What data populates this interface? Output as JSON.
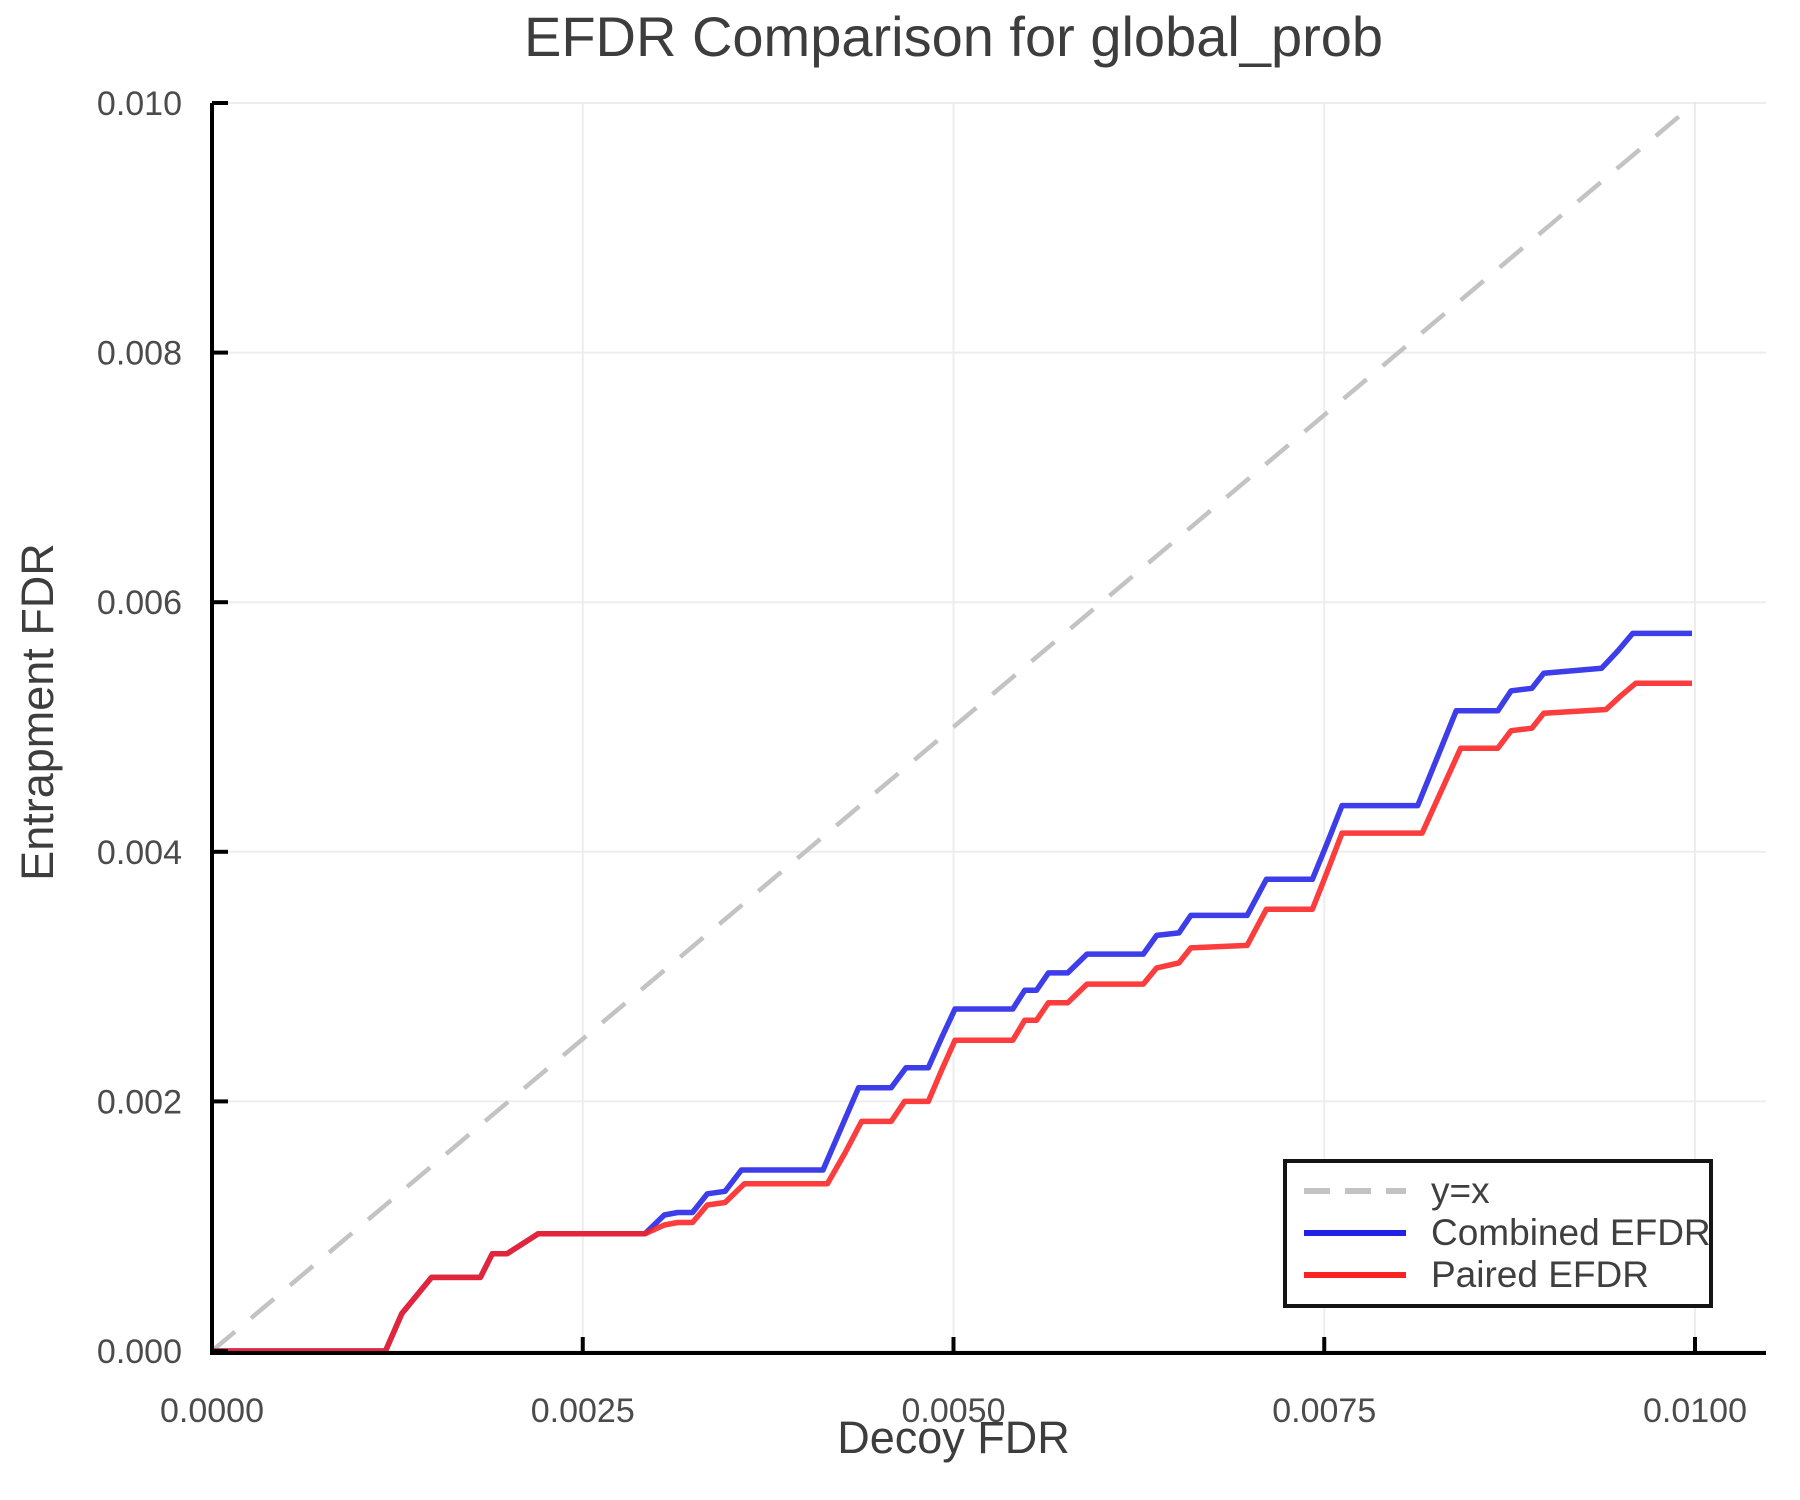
{
  "chart_data": {
    "type": "line",
    "title": "EFDR Comparison for global_prob",
    "xlabel": "Decoy FDR",
    "ylabel": "Entrapment FDR",
    "xlim": [
      0.0,
      0.0105
    ],
    "ylim": [
      0.0,
      0.0101
    ],
    "grid": true,
    "legend_position": "lower right",
    "colors": {
      "grid": "#ededed",
      "spine": "#000000",
      "tick": "#000000",
      "tick_label": "#4b4b4b",
      "title_text": "#3d3d3d",
      "background": "#ffffff"
    },
    "x_ticks": {
      "values": [
        0.0,
        0.0025,
        0.005,
        0.0075,
        0.01
      ],
      "labels": [
        "0.0000",
        "0.0025",
        "0.0050",
        "0.0075",
        "0.0100"
      ]
    },
    "y_ticks": {
      "values": [
        0.0,
        0.002,
        0.004,
        0.006,
        0.008,
        0.01
      ],
      "labels": [
        "0.000",
        "0.002",
        "0.004",
        "0.006",
        "0.008",
        "0.010"
      ]
    },
    "series": [
      {
        "name": "y=x",
        "color": "#c3c3c3",
        "dashed": true,
        "points": [
          [
            0.0,
            0.0
          ],
          [
            0.01,
            0.01
          ]
        ]
      },
      {
        "name": "Combined EFDR",
        "color": "#2222e6",
        "dashed": false,
        "points": [
          [
            0.0,
            0.0
          ],
          [
            0.00117,
            0.0
          ],
          [
            0.00128,
            0.0003
          ],
          [
            0.00148,
            0.00059
          ],
          [
            0.00181,
            0.00059
          ],
          [
            0.00189,
            0.00078
          ],
          [
            0.00199,
            0.00078
          ],
          [
            0.0022,
            0.00094
          ],
          [
            0.00292,
            0.00094
          ],
          [
            0.00305,
            0.00109
          ],
          [
            0.00314,
            0.00111
          ],
          [
            0.00324,
            0.00111
          ],
          [
            0.00334,
            0.00126
          ],
          [
            0.00346,
            0.00128
          ],
          [
            0.00357,
            0.00145
          ],
          [
            0.00412,
            0.00145
          ],
          [
            0.00424,
            0.00178
          ],
          [
            0.00436,
            0.00211
          ],
          [
            0.00458,
            0.00211
          ],
          [
            0.00468,
            0.00227
          ],
          [
            0.00483,
            0.00227
          ],
          [
            0.00492,
            0.00251
          ],
          [
            0.00501,
            0.00274
          ],
          [
            0.0054,
            0.00274
          ],
          [
            0.00548,
            0.00289
          ],
          [
            0.00556,
            0.00289
          ],
          [
            0.00564,
            0.00303
          ],
          [
            0.00577,
            0.00303
          ],
          [
            0.0059,
            0.00318
          ],
          [
            0.00628,
            0.00318
          ],
          [
            0.00637,
            0.00333
          ],
          [
            0.00652,
            0.00335
          ],
          [
            0.0066,
            0.00349
          ],
          [
            0.00698,
            0.00349
          ],
          [
            0.00711,
            0.00378
          ],
          [
            0.00742,
            0.00378
          ],
          [
            0.00752,
            0.00407
          ],
          [
            0.00762,
            0.00437
          ],
          [
            0.00813,
            0.00437
          ],
          [
            0.00826,
            0.00475
          ],
          [
            0.00839,
            0.00513
          ],
          [
            0.00867,
            0.00513
          ],
          [
            0.00876,
            0.00529
          ],
          [
            0.0089,
            0.00531
          ],
          [
            0.00898,
            0.00543
          ],
          [
            0.00937,
            0.00547
          ],
          [
            0.00948,
            0.00561
          ],
          [
            0.00958,
            0.00575
          ],
          [
            0.00998,
            0.00575
          ]
        ]
      },
      {
        "name": "Paired EFDR",
        "color": "#fa2222",
        "dashed": false,
        "points": [
          [
            0.0,
            0.0
          ],
          [
            0.00117,
            0.0
          ],
          [
            0.00128,
            0.0003
          ],
          [
            0.00148,
            0.00059
          ],
          [
            0.00181,
            0.00059
          ],
          [
            0.00189,
            0.00078
          ],
          [
            0.00199,
            0.00078
          ],
          [
            0.0022,
            0.00094
          ],
          [
            0.00292,
            0.00094
          ],
          [
            0.00305,
            0.00101
          ],
          [
            0.00314,
            0.00103
          ],
          [
            0.00324,
            0.00103
          ],
          [
            0.00334,
            0.00117
          ],
          [
            0.00346,
            0.00119
          ],
          [
            0.00359,
            0.00134
          ],
          [
            0.00415,
            0.00134
          ],
          [
            0.00427,
            0.00159
          ],
          [
            0.00438,
            0.00184
          ],
          [
            0.00458,
            0.00184
          ],
          [
            0.00467,
            0.002
          ],
          [
            0.00483,
            0.002
          ],
          [
            0.00492,
            0.00225
          ],
          [
            0.00501,
            0.00249
          ],
          [
            0.0054,
            0.00249
          ],
          [
            0.00548,
            0.00265
          ],
          [
            0.00556,
            0.00265
          ],
          [
            0.00564,
            0.00279
          ],
          [
            0.00577,
            0.00279
          ],
          [
            0.0059,
            0.00294
          ],
          [
            0.00628,
            0.00294
          ],
          [
            0.00637,
            0.00307
          ],
          [
            0.00652,
            0.00311
          ],
          [
            0.0066,
            0.00323
          ],
          [
            0.00698,
            0.00325
          ],
          [
            0.00711,
            0.00354
          ],
          [
            0.00742,
            0.00354
          ],
          [
            0.00752,
            0.00384
          ],
          [
            0.00762,
            0.00415
          ],
          [
            0.00816,
            0.00415
          ],
          [
            0.00829,
            0.00449
          ],
          [
            0.00842,
            0.00483
          ],
          [
            0.00867,
            0.00483
          ],
          [
            0.00876,
            0.00497
          ],
          [
            0.0089,
            0.00499
          ],
          [
            0.00898,
            0.00511
          ],
          [
            0.0094,
            0.00514
          ],
          [
            0.0095,
            0.00525
          ],
          [
            0.0096,
            0.00535
          ],
          [
            0.00998,
            0.00535
          ]
        ]
      }
    ]
  }
}
